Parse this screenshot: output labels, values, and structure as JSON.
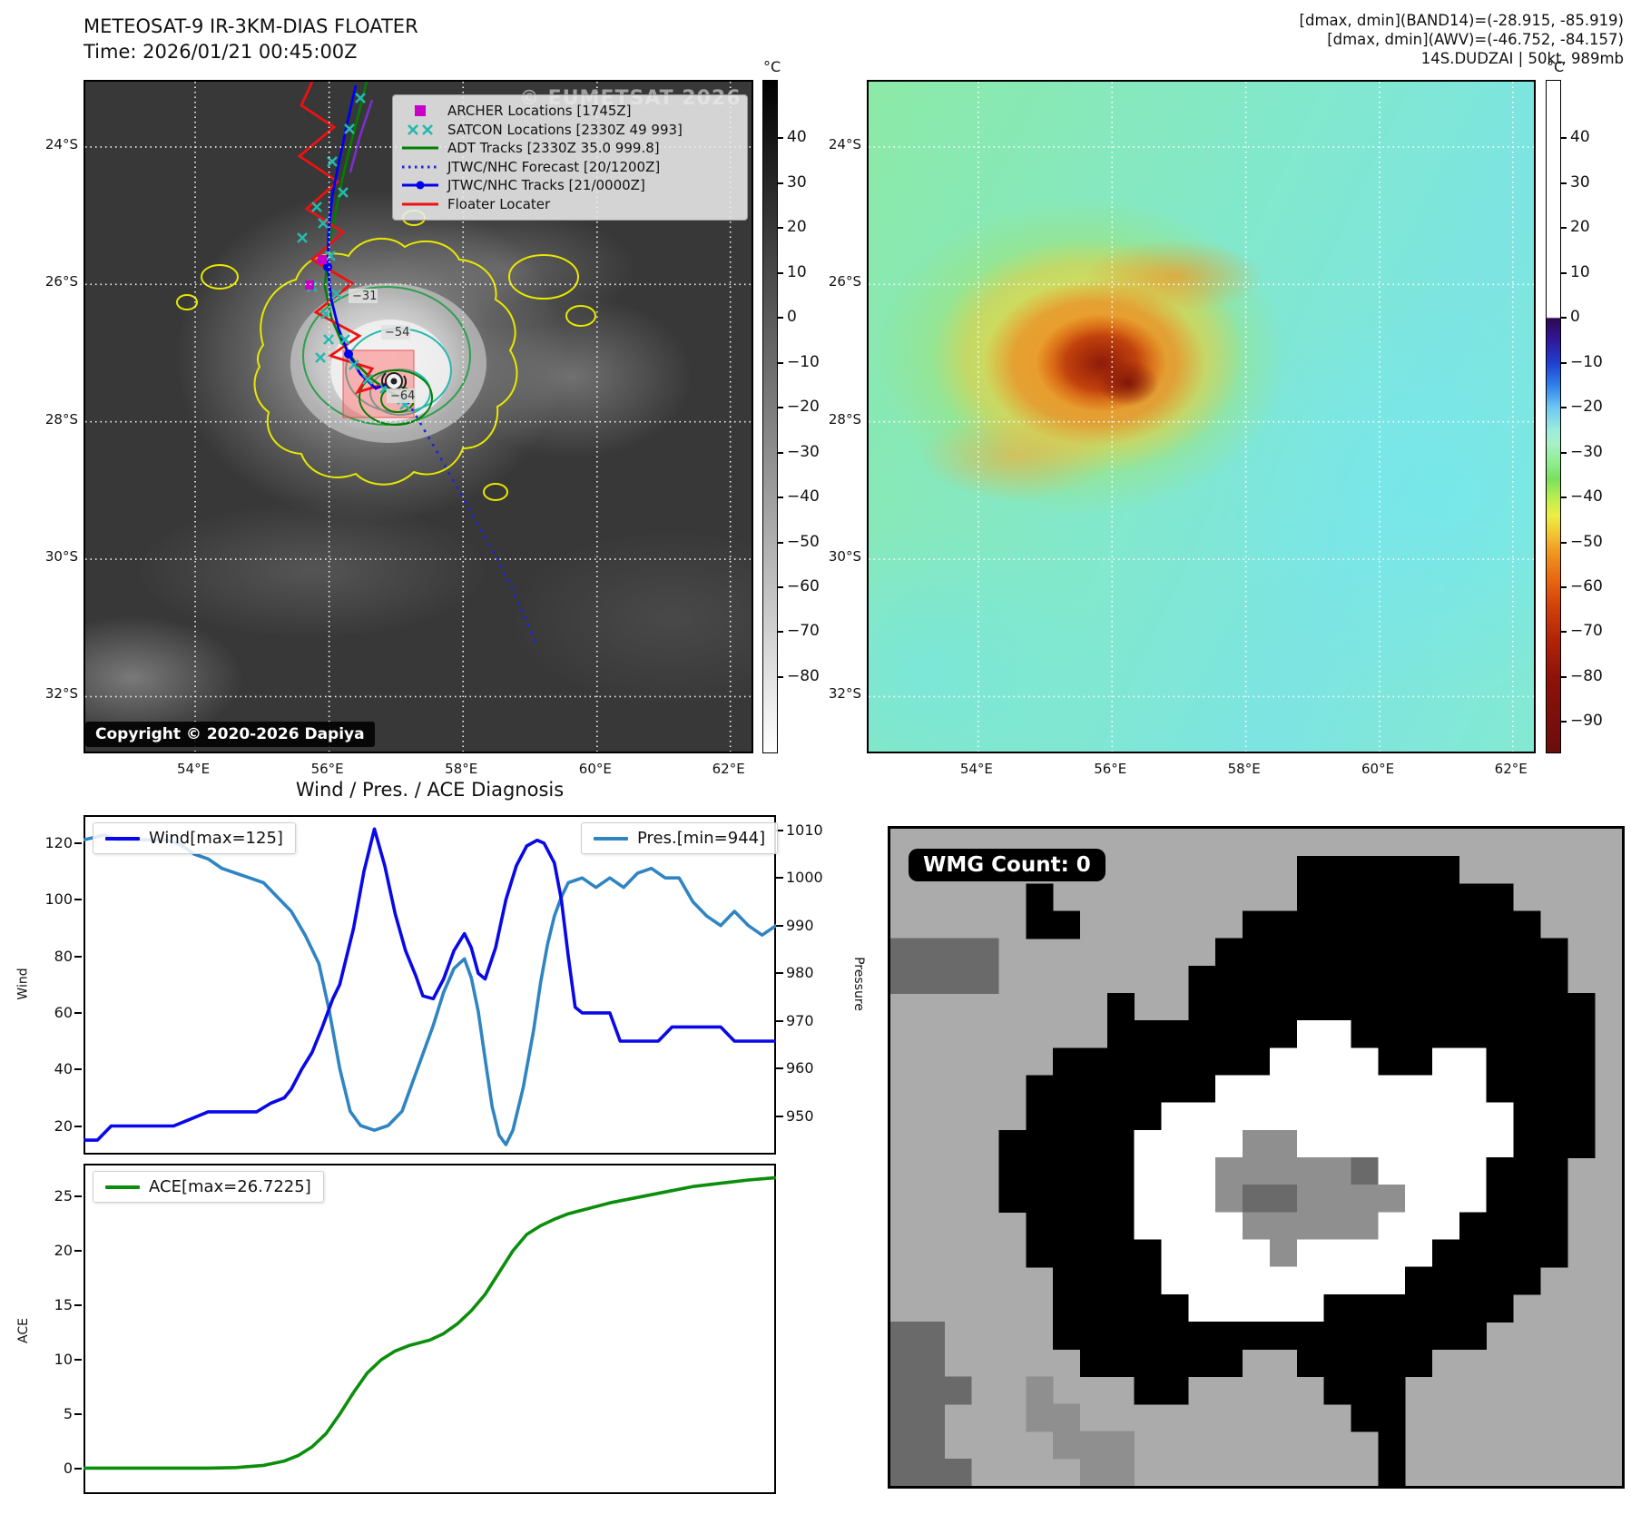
{
  "header": {
    "title_line1": "METEOSAT-9 IR-3KM-DIAS FLOATER",
    "title_line2": "Time: 2026/01/21 00:45:00Z",
    "right_line1": "[dmax, dmin](BAND14)=(-28.915, -85.919)",
    "right_line2": "[dmax, dmin](AWV)=(-46.752, -84.157)",
    "right_line3": "14S.DUDZAI | 50kt, 989mb"
  },
  "ir_panel": {
    "watermark": "© EUMETSAT 2026",
    "copyright": "Copyright © 2020-2026 Dapiya",
    "lat_ticks": [
      "24°S",
      "26°S",
      "28°S",
      "30°S",
      "32°S"
    ],
    "lon_ticks": [
      "54°E",
      "56°E",
      "58°E",
      "60°E",
      "62°E"
    ],
    "contour_labels": [
      "-31",
      "-54",
      "-64"
    ],
    "colorbar": {
      "unit": "°C",
      "ticks": [
        40,
        30,
        20,
        10,
        0,
        -10,
        -20,
        -30,
        -40,
        -50,
        -60,
        -70,
        -80
      ]
    },
    "legend_items": [
      {
        "label": "ARCHER Locations [1745Z]",
        "marker": "square",
        "color": "#c800c8"
      },
      {
        "label": "SATCON Locations [2330Z 49 993]",
        "marker": "xx",
        "color": "#26b8ae"
      },
      {
        "label": "ADT Tracks [2330Z 35.0 999.8]",
        "marker": "line",
        "color": "#008000"
      },
      {
        "label": "JTWC/NHC Forecast [20/1200Z]",
        "marker": "dotted",
        "color": "#2222dd"
      },
      {
        "label": "JTWC/NHC Tracks [21/0000Z]",
        "marker": "line-dot",
        "color": "#0000ee"
      },
      {
        "label": "Floater Locater",
        "marker": "line",
        "color": "#ee1111"
      }
    ]
  },
  "awv_panel": {
    "lat_ticks": [
      "24°S",
      "26°S",
      "28°S",
      "30°S",
      "32°S"
    ],
    "lon_ticks": [
      "54°E",
      "56°E",
      "58°E",
      "60°E",
      "62°E"
    ],
    "colorbar": {
      "unit": "°C",
      "ticks": [
        40,
        30,
        20,
        10,
        0,
        -10,
        -20,
        -30,
        -40,
        -50,
        -60,
        -70,
        -80,
        -90
      ]
    }
  },
  "wmg_panel": {
    "label": "WMG Count: 0",
    "palette": {
      ".": "#ababab",
      "k": "#000000",
      "w": "#ffffff",
      "g": "#8f8f8f",
      "d": "#6a6a6a"
    },
    "grid": [
      "...........................",
      "...............kkkkkk......",
      ".....k.........kkkkkkkk....",
      ".....kk......kkkkkkkkkkk...",
      "dddd........kkkkkkkkkkkkk..",
      "dddd.......kkkkkkkkkkkkkk..",
      "........k..kkkkkkkkkkkkkkk.",
      "........kkkkkkkwwkkkkkkkkk.",
      "......kkkkkkkkwwwwkkwwkkkk.",
      ".....kkkkkkkwwwwwwwwwwkkkk.",
      ".....kkkkkwwwwwwwwwwwwwkkk.",
      "....kkkkkwwwwggwwwwwwwwkkk.",
      "....kkkkkwwwgggggdwwwwkkk..",
      "....kkkkkwwwgddggggwwwkkk..",
      ".....kkkkwwwwgggggwwwkkkk..",
      ".....kkkkkwwwwgwwwwwkkkkk..",
      "......kkkkwwwwwwwwwkkkkk...",
      "......kkkkkwwwwwkkkkkkk....",
      "dd....kkkkkkkkkkkkkkkk.....",
      "dd.....kkkkkk..kkkkk.......",
      "ddd..g...kk.....kkk........",
      "dd...gg..........kk........",
      "dd....ggg.........k........",
      "ddd....gg.........k........"
    ]
  },
  "chart_data": [
    {
      "type": "line",
      "title": "Wind / Pres. / ACE Diagnosis",
      "x_range": [
        0,
        1
      ],
      "grid": false,
      "left_axis": {
        "label": "Wind",
        "ticks": [
          20,
          40,
          60,
          80,
          100,
          120
        ],
        "range": [
          9.9,
          129.9
        ]
      },
      "right_axis": {
        "label": "Pressure",
        "ticks": [
          950,
          960,
          970,
          980,
          990,
          1000,
          1010
        ],
        "range": [
          941.9,
          1013.2
        ]
      },
      "series": [
        {
          "name": "Wind[max=125]",
          "axis": "left",
          "color": "#0808e8",
          "legend_position": "upper-left",
          "points": [
            [
              0,
              15
            ],
            [
              0.02,
              15
            ],
            [
              0.04,
              20
            ],
            [
              0.13,
              20
            ],
            [
              0.15,
              22
            ],
            [
              0.18,
              25
            ],
            [
              0.25,
              25
            ],
            [
              0.27,
              28
            ],
            [
              0.29,
              30
            ],
            [
              0.3,
              33
            ],
            [
              0.315,
              40
            ],
            [
              0.33,
              46
            ],
            [
              0.345,
              55
            ],
            [
              0.36,
              65
            ],
            [
              0.37,
              70
            ],
            [
              0.39,
              90
            ],
            [
              0.405,
              110
            ],
            [
              0.42,
              125
            ],
            [
              0.435,
              112
            ],
            [
              0.45,
              95
            ],
            [
              0.465,
              82
            ],
            [
              0.48,
              73
            ],
            [
              0.49,
              66
            ],
            [
              0.505,
              65
            ],
            [
              0.52,
              72
            ],
            [
              0.535,
              82
            ],
            [
              0.55,
              88
            ],
            [
              0.56,
              83
            ],
            [
              0.57,
              74
            ],
            [
              0.58,
              72
            ],
            [
              0.595,
              83
            ],
            [
              0.61,
              100
            ],
            [
              0.625,
              112
            ],
            [
              0.64,
              119
            ],
            [
              0.655,
              121
            ],
            [
              0.665,
              120
            ],
            [
              0.68,
              113
            ],
            [
              0.69,
              100
            ],
            [
              0.7,
              80
            ],
            [
              0.71,
              62
            ],
            [
              0.72,
              60
            ],
            [
              0.76,
              60
            ],
            [
              0.775,
              50
            ],
            [
              0.83,
              50
            ],
            [
              0.85,
              55
            ],
            [
              0.92,
              55
            ],
            [
              0.94,
              50
            ],
            [
              0.97,
              50
            ],
            [
              1,
              50
            ]
          ]
        },
        {
          "name": "Pres.[min=944]",
          "axis": "right",
          "color": "#2f85c2",
          "legend_position": "upper-right",
          "points": [
            [
              0,
              1008
            ],
            [
              0.03,
              1009
            ],
            [
              0.05,
              1008
            ],
            [
              0.12,
              1008
            ],
            [
              0.14,
              1007
            ],
            [
              0.16,
              1005
            ],
            [
              0.18,
              1004
            ],
            [
              0.2,
              1002
            ],
            [
              0.22,
              1001
            ],
            [
              0.24,
              1000
            ],
            [
              0.26,
              999
            ],
            [
              0.28,
              996
            ],
            [
              0.3,
              993
            ],
            [
              0.32,
              988
            ],
            [
              0.34,
              982
            ],
            [
              0.355,
              972
            ],
            [
              0.37,
              960
            ],
            [
              0.385,
              951
            ],
            [
              0.4,
              948
            ],
            [
              0.42,
              947
            ],
            [
              0.44,
              948
            ],
            [
              0.46,
              951
            ],
            [
              0.475,
              957
            ],
            [
              0.49,
              963
            ],
            [
              0.505,
              969
            ],
            [
              0.52,
              976
            ],
            [
              0.535,
              981
            ],
            [
              0.55,
              983
            ],
            [
              0.56,
              979
            ],
            [
              0.57,
              972
            ],
            [
              0.58,
              962
            ],
            [
              0.59,
              952
            ],
            [
              0.6,
              946
            ],
            [
              0.61,
              944
            ],
            [
              0.62,
              947
            ],
            [
              0.635,
              956
            ],
            [
              0.65,
              968
            ],
            [
              0.66,
              978
            ],
            [
              0.67,
              986
            ],
            [
              0.68,
              992
            ],
            [
              0.69,
              996
            ],
            [
              0.7,
              999
            ],
            [
              0.72,
              1000
            ],
            [
              0.74,
              998
            ],
            [
              0.76,
              1000
            ],
            [
              0.78,
              998
            ],
            [
              0.8,
              1001
            ],
            [
              0.82,
              1002
            ],
            [
              0.84,
              1000
            ],
            [
              0.86,
              1000
            ],
            [
              0.88,
              995
            ],
            [
              0.9,
              992
            ],
            [
              0.92,
              990
            ],
            [
              0.94,
              993
            ],
            [
              0.96,
              990
            ],
            [
              0.98,
              988
            ],
            [
              1,
              990
            ]
          ]
        }
      ]
    },
    {
      "type": "line",
      "title": "",
      "x_range": [
        0,
        1
      ],
      "grid": false,
      "left_axis": {
        "label": "ACE",
        "ticks": [
          0,
          5,
          10,
          15,
          20,
          25
        ],
        "range": [
          -2.33,
          28.0
        ]
      },
      "series": [
        {
          "name": "ACE[max=26.7225]",
          "axis": "left",
          "color": "#0b8e0b",
          "legend_position": "upper-left",
          "points": [
            [
              0,
              0.05
            ],
            [
              0.18,
              0.05
            ],
            [
              0.22,
              0.1
            ],
            [
              0.26,
              0.3
            ],
            [
              0.29,
              0.7
            ],
            [
              0.31,
              1.2
            ],
            [
              0.33,
              2.0
            ],
            [
              0.35,
              3.2
            ],
            [
              0.37,
              5.0
            ],
            [
              0.39,
              7.0
            ],
            [
              0.41,
              8.8
            ],
            [
              0.43,
              10.0
            ],
            [
              0.45,
              10.8
            ],
            [
              0.47,
              11.3
            ],
            [
              0.5,
              11.8
            ],
            [
              0.52,
              12.4
            ],
            [
              0.54,
              13.3
            ],
            [
              0.56,
              14.5
            ],
            [
              0.58,
              16.0
            ],
            [
              0.6,
              18.0
            ],
            [
              0.62,
              20.0
            ],
            [
              0.64,
              21.5
            ],
            [
              0.66,
              22.3
            ],
            [
              0.68,
              22.9
            ],
            [
              0.7,
              23.4
            ],
            [
              0.73,
              23.9
            ],
            [
              0.76,
              24.4
            ],
            [
              0.8,
              24.9
            ],
            [
              0.84,
              25.4
            ],
            [
              0.88,
              25.9
            ],
            [
              0.92,
              26.2
            ],
            [
              0.96,
              26.5
            ],
            [
              1,
              26.72
            ]
          ]
        }
      ]
    }
  ]
}
